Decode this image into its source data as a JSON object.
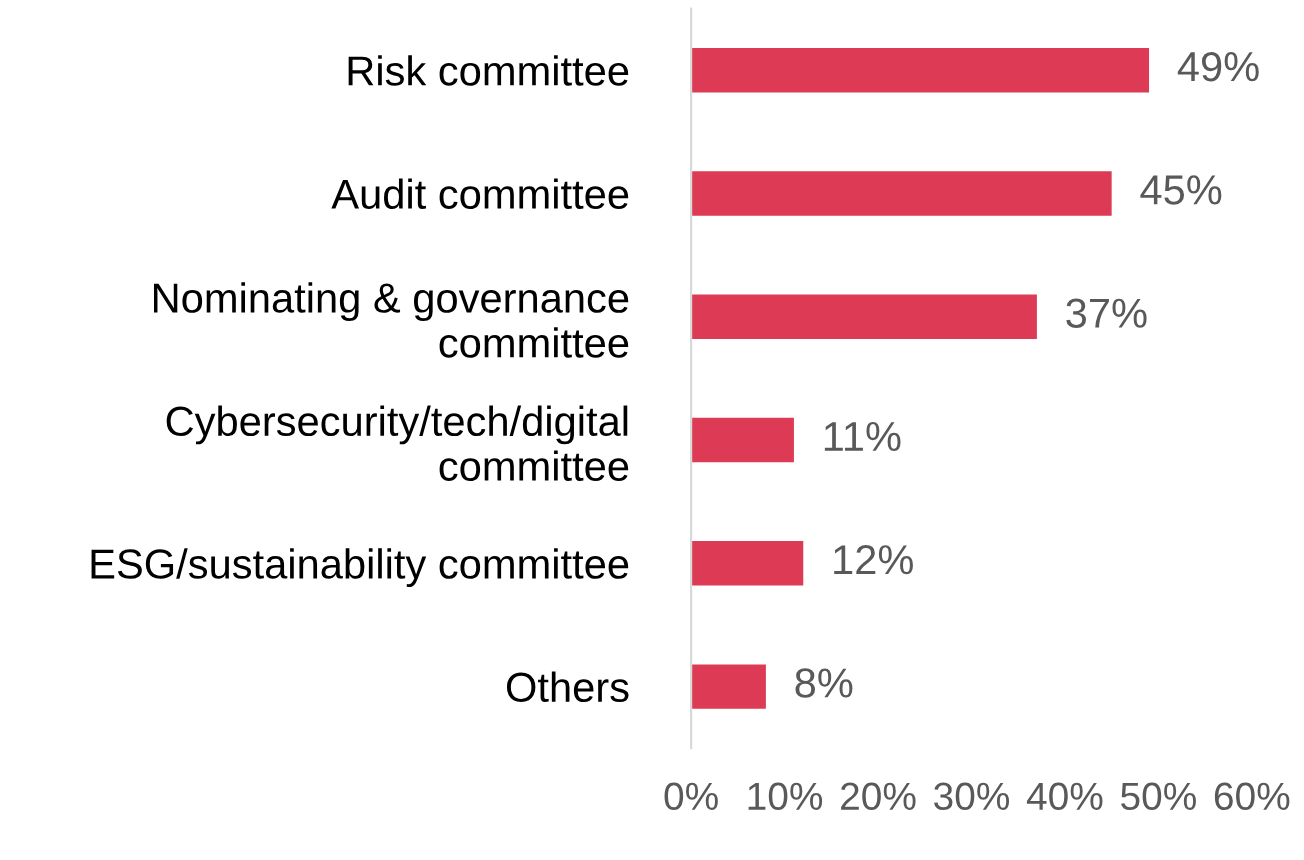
{
  "chart_data": {
    "type": "bar",
    "orientation": "horizontal",
    "categories": [
      "Risk committee",
      "Audit committee",
      "Nominating & governance\ncommittee",
      "Cybersecurity/tech/digital\ncommittee",
      "ESG/sustainability committee",
      "Others"
    ],
    "values": [
      49,
      45,
      37,
      11,
      12,
      8
    ],
    "value_labels": [
      "49%",
      "45%",
      "37%",
      "11%",
      "12%",
      "8%"
    ],
    "color": "#dc3a55",
    "xlim": [
      0,
      60
    ],
    "xticks": [
      {
        "value": 0,
        "label": "0%"
      },
      {
        "value": 10,
        "label": "10%"
      },
      {
        "value": 20,
        "label": "20%"
      },
      {
        "value": 30,
        "label": "30%"
      },
      {
        "value": 40,
        "label": "40%"
      },
      {
        "value": 50,
        "label": "50%"
      },
      {
        "value": 60,
        "label": "60%"
      }
    ],
    "grid": false,
    "legend": false
  }
}
